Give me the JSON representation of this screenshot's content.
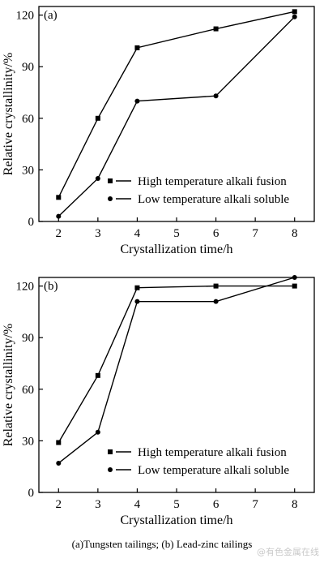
{
  "caption": "(a)Tungsten tailings; (b) Lead-zinc tailings",
  "watermark": "@有色金属在线",
  "chart_data": [
    {
      "type": "line",
      "panel_label": "(a)",
      "xlabel": "Crystallization time/h",
      "ylabel": "Relative crystallinity/%",
      "xlim": [
        1.5,
        8.5
      ],
      "ylim": [
        0,
        125
      ],
      "xticks": [
        2,
        3,
        4,
        5,
        6,
        7,
        8
      ],
      "yticks": [
        0,
        30,
        60,
        90,
        120
      ],
      "legend_position": "bottom-right",
      "series": [
        {
          "name": "High temperature alkali fusion",
          "marker": "square",
          "x": [
            2,
            3,
            4,
            6,
            8
          ],
          "y": [
            14,
            60,
            101,
            112,
            122
          ]
        },
        {
          "name": "Low temperature alkali soluble",
          "marker": "circle",
          "x": [
            2,
            3,
            4,
            6,
            8
          ],
          "y": [
            3,
            25,
            70,
            73,
            119
          ]
        }
      ]
    },
    {
      "type": "line",
      "panel_label": "(b)",
      "xlabel": "Crystallization time/h",
      "ylabel": "Relative crystallinity/%",
      "xlim": [
        1.5,
        8.5
      ],
      "ylim": [
        0,
        125
      ],
      "xticks": [
        2,
        3,
        4,
        5,
        6,
        7,
        8
      ],
      "yticks": [
        0,
        30,
        60,
        90,
        120
      ],
      "legend_position": "bottom-right",
      "series": [
        {
          "name": "High temperature alkali fusion",
          "marker": "square",
          "x": [
            2,
            3,
            4,
            6,
            8
          ],
          "y": [
            29,
            68,
            119,
            120,
            120
          ]
        },
        {
          "name": "Low temperature alkali soluble",
          "marker": "circle",
          "x": [
            2,
            3,
            4,
            6,
            8
          ],
          "y": [
            17,
            35,
            111,
            111,
            125
          ]
        }
      ]
    }
  ]
}
